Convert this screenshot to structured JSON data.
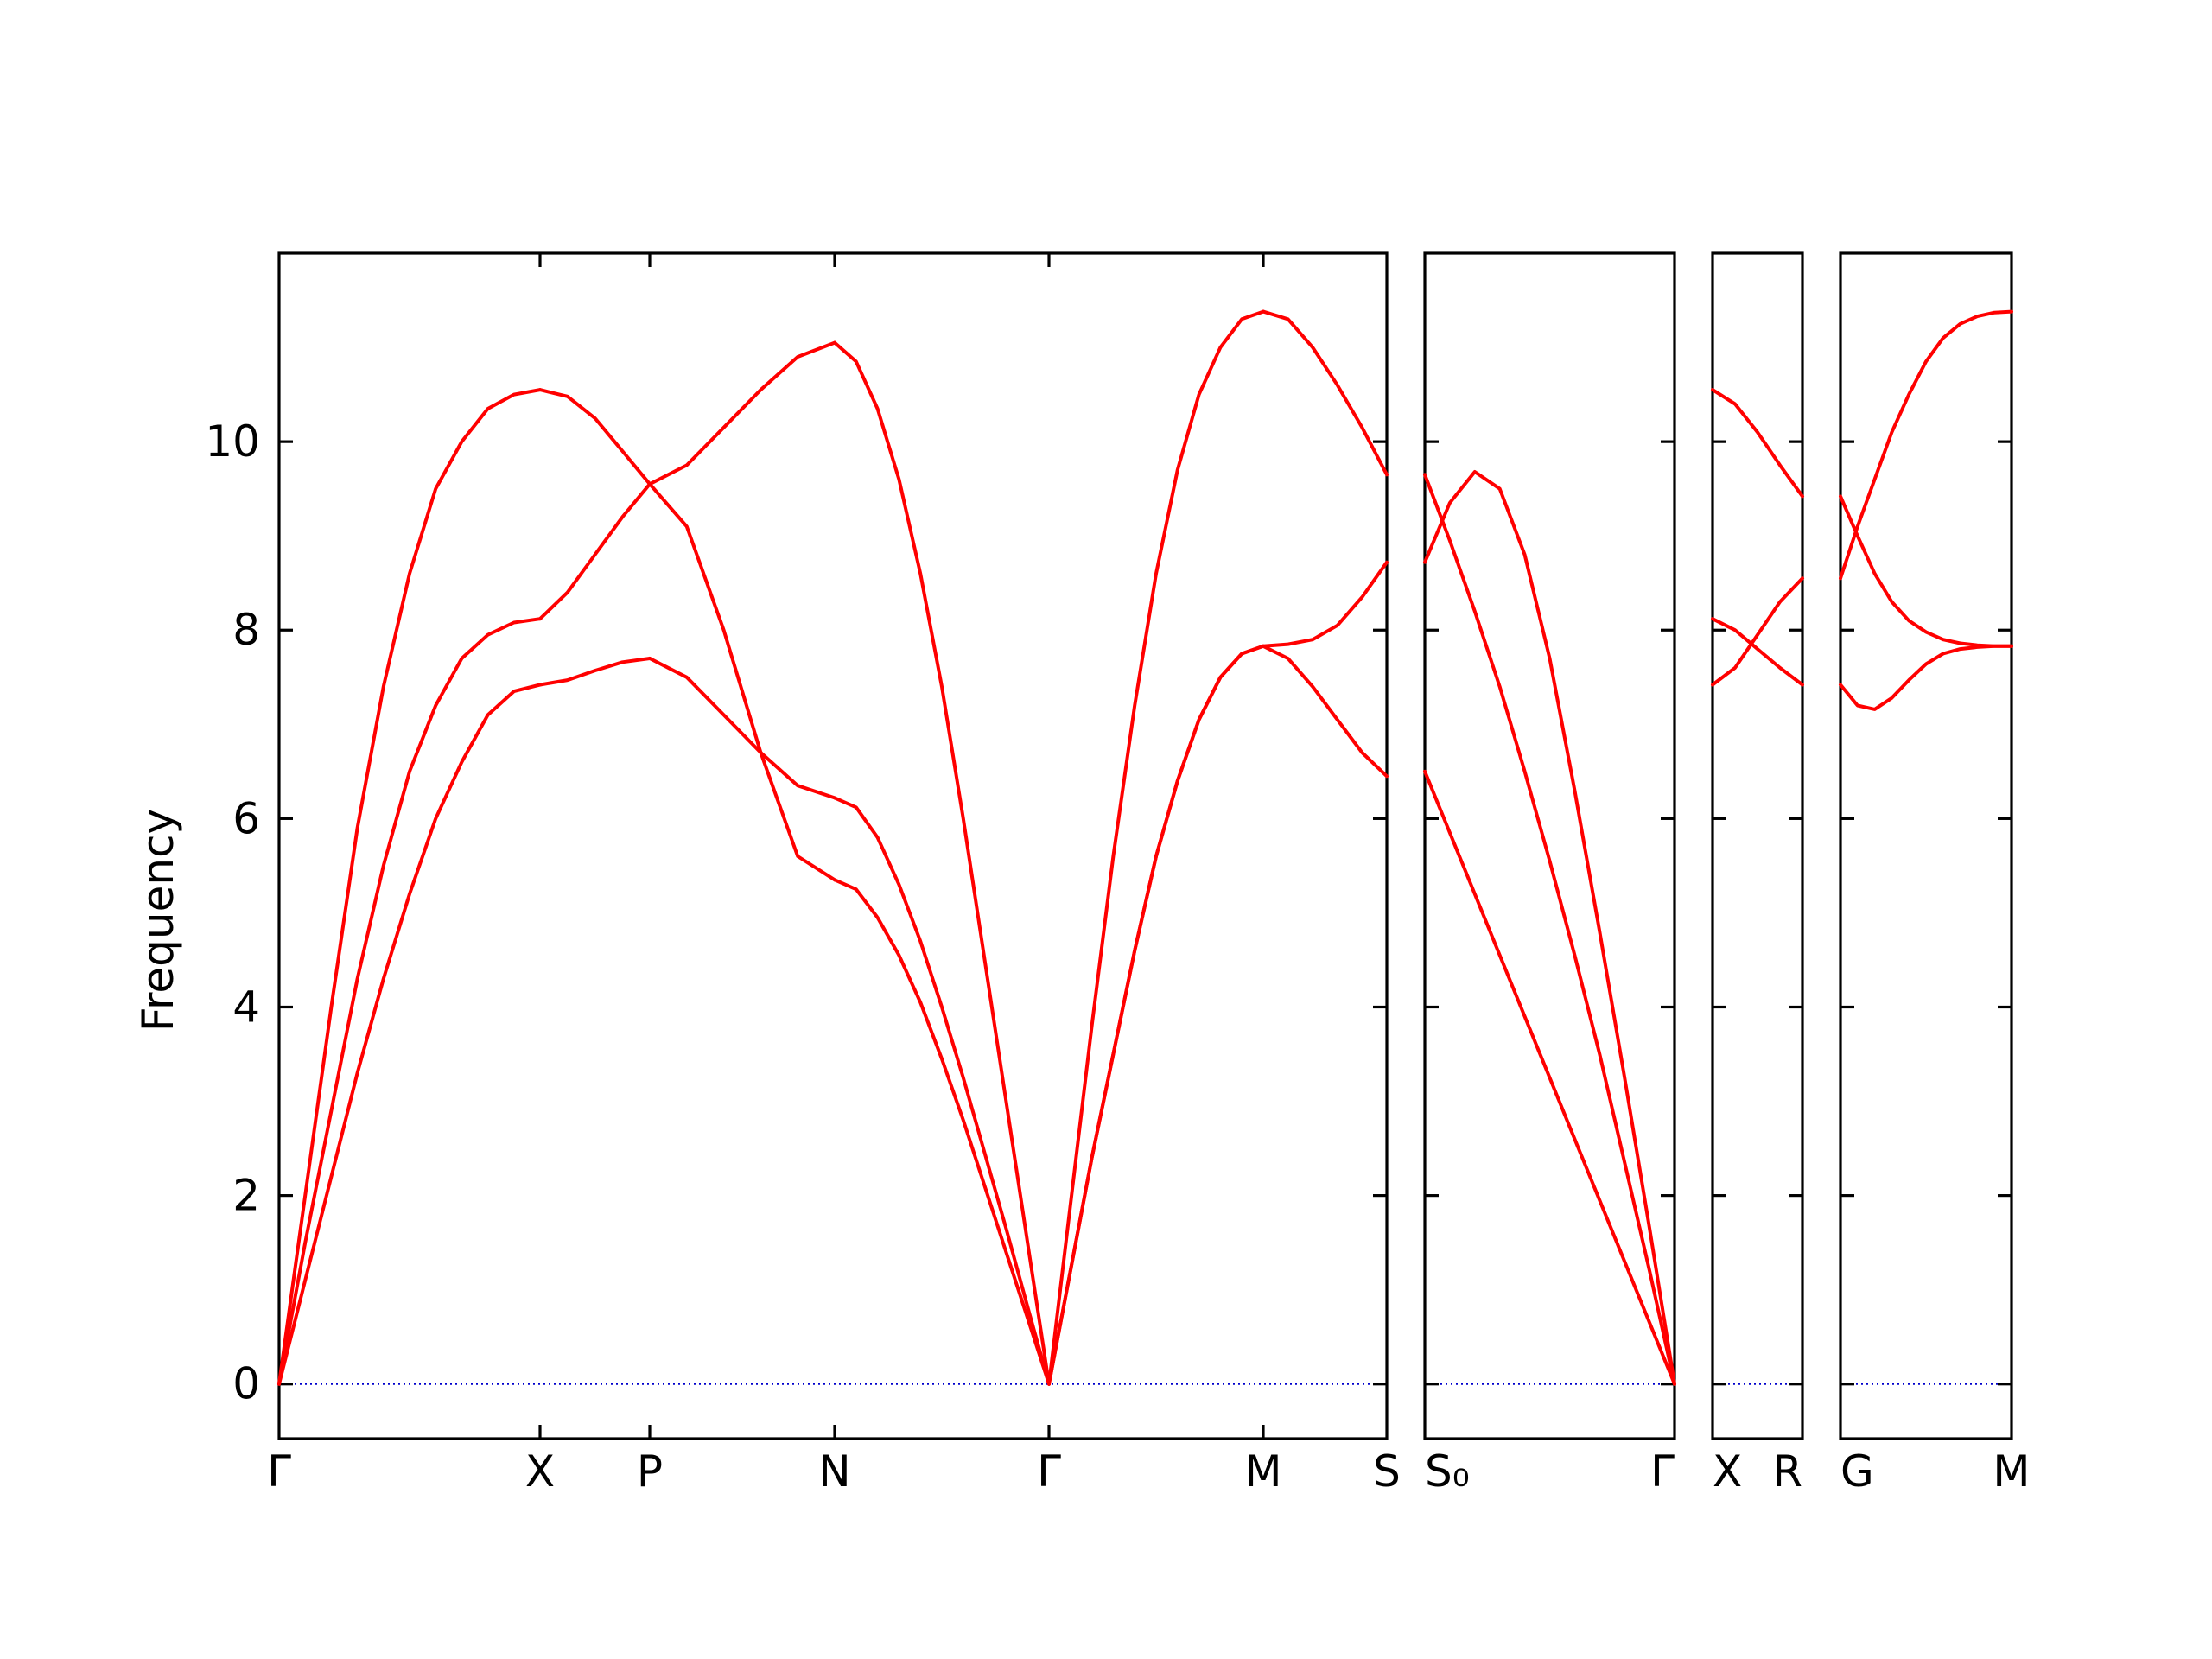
{
  "chart_data": {
    "type": "line",
    "ylabel": "Frequency",
    "ylim": [
      -0.58,
      12.0
    ],
    "yticks": [
      0,
      2,
      4,
      6,
      8,
      10
    ],
    "ytick_labels": [
      "0",
      "2",
      "4",
      "6",
      "8",
      "10"
    ],
    "colors": {
      "bands": "#ff0000",
      "zero_line": "#0000cc",
      "axes": "#000000"
    },
    "panels": [
      {
        "id": "panel-1",
        "segments": [
          {
            "from": "Γ",
            "to": "X",
            "x": [
              0,
              0.1,
              0.2,
              0.3,
              0.4,
              0.5,
              0.6,
              0.7,
              0.8,
              0.9,
              1.0
            ],
            "bands": [
              [
                0,
                1.1,
                2.2,
                3.3,
                4.3,
                5.2,
                6.0,
                6.6,
                7.1,
                7.35,
                7.42
              ],
              [
                0,
                1.5,
                2.9,
                4.3,
                5.5,
                6.5,
                7.2,
                7.7,
                7.95,
                8.08,
                8.12
              ],
              [
                0,
                2.0,
                4.0,
                5.9,
                7.4,
                8.6,
                9.5,
                10.0,
                10.35,
                10.5,
                10.55
              ]
            ]
          },
          {
            "from": "X",
            "to": "P",
            "x": [
              0,
              0.25,
              0.5,
              0.75,
              1.0
            ],
            "bands": [
              [
                7.42,
                7.47,
                7.57,
                7.66,
                7.7
              ],
              [
                8.12,
                8.4,
                8.8,
                9.2,
                9.55
              ],
              [
                10.55,
                10.48,
                10.25,
                9.9,
                9.55
              ]
            ]
          },
          {
            "from": "P",
            "to": "N",
            "x": [
              0,
              0.2,
              0.4,
              0.6,
              0.8,
              1.0
            ],
            "bands": [
              [
                7.7,
                7.5,
                7.1,
                6.7,
                6.35,
                6.22
              ],
              [
                9.55,
                9.1,
                8.0,
                6.7,
                5.6,
                5.35
              ],
              [
                9.55,
                9.75,
                10.15,
                10.55,
                10.9,
                11.05
              ]
            ]
          },
          {
            "from": "N",
            "to": "Γ",
            "x": [
              0,
              0.1,
              0.2,
              0.3,
              0.4,
              0.5,
              0.6,
              0.7,
              0.8,
              0.9,
              1.0
            ],
            "bands": [
              [
                5.35,
                5.25,
                4.95,
                4.55,
                4.05,
                3.45,
                2.8,
                2.1,
                1.4,
                0.7,
                0
              ],
              [
                6.22,
                6.12,
                5.8,
                5.3,
                4.7,
                4.0,
                3.25,
                2.45,
                1.65,
                0.82,
                0
              ],
              [
                11.05,
                10.85,
                10.35,
                9.6,
                8.6,
                7.4,
                6.0,
                4.5,
                3.0,
                1.5,
                0
              ]
            ]
          },
          {
            "from": "Γ",
            "to": "M",
            "x": [
              0,
              0.1,
              0.2,
              0.3,
              0.4,
              0.5,
              0.6,
              0.7,
              0.8,
              0.9,
              1.0
            ],
            "bands": [
              [
                0,
                1.2,
                2.4,
                3.5,
                4.6,
                5.6,
                6.4,
                7.05,
                7.5,
                7.75,
                7.83
              ],
              [
                0,
                1.2,
                2.4,
                3.5,
                4.6,
                5.6,
                6.4,
                7.05,
                7.5,
                7.75,
                7.83
              ],
              [
                0,
                1.9,
                3.8,
                5.6,
                7.2,
                8.6,
                9.7,
                10.5,
                11.0,
                11.3,
                11.38
              ]
            ]
          },
          {
            "from": "M",
            "to": "S",
            "x": [
              0,
              0.2,
              0.4,
              0.6,
              0.8,
              1.0
            ],
            "bands": [
              [
                7.83,
                7.7,
                7.4,
                7.05,
                6.7,
                6.45
              ],
              [
                7.83,
                7.85,
                7.9,
                8.05,
                8.35,
                8.72
              ],
              [
                11.38,
                11.3,
                11.0,
                10.6,
                10.15,
                9.65
              ]
            ]
          }
        ],
        "kpoint_labels": [
          "Γ",
          "X",
          "P",
          "N",
          "Γ",
          "M",
          "S"
        ]
      },
      {
        "id": "panel-2",
        "segments": [
          {
            "from": "S₀",
            "to": "Γ",
            "x": [
              0,
              0.1,
              0.2,
              0.3,
              0.4,
              0.5,
              0.6,
              0.7,
              0.8,
              0.9,
              1.0
            ],
            "bands": [
              [
                6.5,
                5.85,
                5.2,
                4.55,
                3.9,
                3.25,
                2.6,
                1.95,
                1.3,
                0.65,
                0
              ],
              [
                8.72,
                9.35,
                9.68,
                9.5,
                8.8,
                7.7,
                6.3,
                4.8,
                3.25,
                1.65,
                0
              ],
              [
                9.65,
                8.95,
                8.2,
                7.4,
                6.5,
                5.55,
                4.55,
                3.5,
                2.35,
                1.2,
                0
              ]
            ]
          }
        ],
        "kpoint_labels": [
          "S₀",
          "Γ"
        ]
      },
      {
        "id": "panel-3",
        "segments": [
          {
            "from": "X",
            "to": "R",
            "x": [
              0,
              0.25,
              0.5,
              0.75,
              1.0
            ],
            "bands": [
              [
                7.42,
                7.6,
                7.95,
                8.3,
                8.55
              ],
              [
                8.12,
                8.0,
                7.8,
                7.6,
                7.42
              ],
              [
                10.55,
                10.4,
                10.1,
                9.75,
                9.42
              ]
            ]
          }
        ],
        "kpoint_labels": [
          "X",
          "R"
        ]
      },
      {
        "id": "panel-4",
        "segments": [
          {
            "from": "G",
            "to": "M",
            "x": [
              0,
              0.1,
              0.2,
              0.3,
              0.4,
              0.5,
              0.6,
              0.7,
              0.8,
              0.9,
              1.0
            ],
            "bands": [
              [
                7.42,
                7.2,
                7.16,
                7.28,
                7.47,
                7.64,
                7.75,
                7.8,
                7.82,
                7.83,
                7.83
              ],
              [
                9.42,
                9.0,
                8.6,
                8.3,
                8.1,
                7.98,
                7.9,
                7.86,
                7.84,
                7.83,
                7.83
              ],
              [
                8.55,
                9.1,
                9.6,
                10.1,
                10.5,
                10.85,
                11.1,
                11.25,
                11.33,
                11.37,
                11.38
              ]
            ]
          }
        ],
        "kpoint_labels": [
          "G",
          "M"
        ]
      }
    ]
  }
}
